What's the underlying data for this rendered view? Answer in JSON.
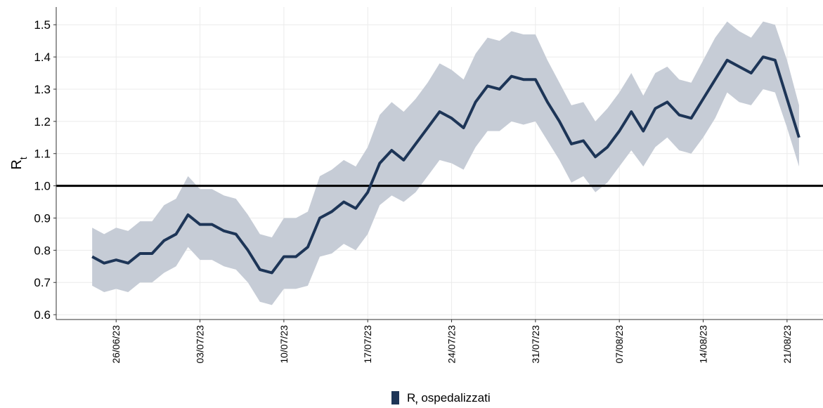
{
  "chart_data": {
    "type": "line_band",
    "ylabel": "Rt",
    "x": [
      "2023-06-24",
      "2023-06-25",
      "2023-06-26",
      "2023-06-27",
      "2023-06-28",
      "2023-06-29",
      "2023-06-30",
      "2023-07-01",
      "2023-07-02",
      "2023-07-03",
      "2023-07-04",
      "2023-07-05",
      "2023-07-06",
      "2023-07-07",
      "2023-07-08",
      "2023-07-09",
      "2023-07-10",
      "2023-07-11",
      "2023-07-12",
      "2023-07-13",
      "2023-07-14",
      "2023-07-15",
      "2023-07-16",
      "2023-07-17",
      "2023-07-18",
      "2023-07-19",
      "2023-07-20",
      "2023-07-21",
      "2023-07-22",
      "2023-07-23",
      "2023-07-24",
      "2023-07-25",
      "2023-07-26",
      "2023-07-27",
      "2023-07-28",
      "2023-07-29",
      "2023-07-30",
      "2023-07-31",
      "2023-08-01",
      "2023-08-02",
      "2023-08-03",
      "2023-08-04",
      "2023-08-05",
      "2023-08-06",
      "2023-08-07",
      "2023-08-08",
      "2023-08-09",
      "2023-08-10",
      "2023-08-11",
      "2023-08-12",
      "2023-08-13",
      "2023-08-14",
      "2023-08-15",
      "2023-08-16",
      "2023-08-17",
      "2023-08-18",
      "2023-08-19",
      "2023-08-20",
      "2023-08-21",
      "2023-08-22"
    ],
    "series": [
      {
        "name": "Rt ospedalizzati",
        "color": "#1d3557",
        "band_color": "#c6ccd6",
        "values": [
          0.78,
          0.76,
          0.77,
          0.76,
          0.79,
          0.79,
          0.83,
          0.85,
          0.91,
          0.88,
          0.88,
          0.86,
          0.85,
          0.8,
          0.74,
          0.73,
          0.78,
          0.78,
          0.81,
          0.9,
          0.92,
          0.95,
          0.93,
          0.98,
          1.07,
          1.11,
          1.08,
          1.13,
          1.18,
          1.23,
          1.21,
          1.18,
          1.26,
          1.31,
          1.3,
          1.34,
          1.33,
          1.33,
          1.26,
          1.2,
          1.13,
          1.14,
          1.09,
          1.12,
          1.17,
          1.23,
          1.17,
          1.24,
          1.26,
          1.22,
          1.21,
          1.27,
          1.33,
          1.39,
          1.37,
          1.35,
          1.4,
          1.39,
          1.27,
          1.15
        ],
        "lower": [
          0.69,
          0.67,
          0.68,
          0.67,
          0.7,
          0.7,
          0.73,
          0.75,
          0.81,
          0.77,
          0.77,
          0.75,
          0.74,
          0.7,
          0.64,
          0.63,
          0.68,
          0.68,
          0.69,
          0.78,
          0.79,
          0.82,
          0.8,
          0.85,
          0.94,
          0.97,
          0.95,
          0.98,
          1.03,
          1.08,
          1.07,
          1.05,
          1.12,
          1.17,
          1.17,
          1.2,
          1.19,
          1.2,
          1.14,
          1.08,
          1.01,
          1.03,
          0.98,
          1.01,
          1.06,
          1.11,
          1.06,
          1.12,
          1.15,
          1.11,
          1.1,
          1.15,
          1.21,
          1.29,
          1.26,
          1.25,
          1.3,
          1.29,
          1.18,
          1.06
        ],
        "upper": [
          0.87,
          0.85,
          0.87,
          0.86,
          0.89,
          0.89,
          0.94,
          0.96,
          1.03,
          0.99,
          0.99,
          0.97,
          0.96,
          0.91,
          0.85,
          0.84,
          0.9,
          0.9,
          0.92,
          1.03,
          1.05,
          1.08,
          1.06,
          1.12,
          1.22,
          1.26,
          1.23,
          1.27,
          1.32,
          1.38,
          1.36,
          1.33,
          1.41,
          1.46,
          1.45,
          1.48,
          1.47,
          1.47,
          1.39,
          1.32,
          1.25,
          1.26,
          1.2,
          1.24,
          1.29,
          1.35,
          1.28,
          1.35,
          1.37,
          1.33,
          1.32,
          1.39,
          1.46,
          1.51,
          1.48,
          1.46,
          1.51,
          1.5,
          1.39,
          1.25
        ]
      }
    ],
    "reference_line": 1.0,
    "xlim": [
      "2023-06-21",
      "2023-08-24"
    ],
    "xticks": [
      {
        "value": "2023-06-26",
        "label": "26/06/23"
      },
      {
        "value": "2023-07-03",
        "label": "03/07/23"
      },
      {
        "value": "2023-07-10",
        "label": "10/07/23"
      },
      {
        "value": "2023-07-17",
        "label": "17/07/23"
      },
      {
        "value": "2023-07-24",
        "label": "24/07/23"
      },
      {
        "value": "2023-07-31",
        "label": "31/07/23"
      },
      {
        "value": "2023-08-07",
        "label": "07/08/23"
      },
      {
        "value": "2023-08-14",
        "label": "14/08/23"
      },
      {
        "value": "2023-08-21",
        "label": "21/08/23"
      }
    ],
    "ylim": [
      0.585,
      1.555
    ],
    "yticks": [
      0.6,
      0.7,
      0.8,
      0.9,
      {
        "value": 1,
        "label": "1.0"
      },
      1.1,
      1.2,
      1.3,
      1.4,
      1.5
    ],
    "grid": true,
    "legend": "bottom"
  }
}
